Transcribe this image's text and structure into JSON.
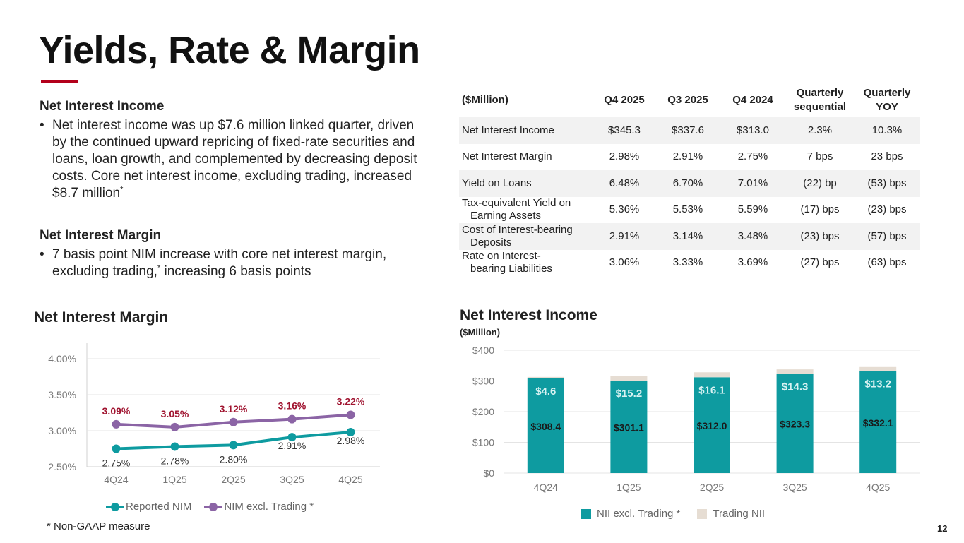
{
  "title": "Yields, Rate & Margin",
  "left": {
    "nii_heading": "Net Interest Income",
    "nii_bullet": "Net interest income was up $7.6 million linked quarter, driven by the continued upward repricing of fixed-rate securities and loans, loan growth, and complemented by decreasing deposit costs. Core net interest income, excluding trading, increased $8.7 million",
    "nii_star": "*",
    "nim_heading": "Net Interest Margin",
    "nim_bullet_a": "7 basis point NIM increase with core net interest margin, excluding trading,",
    "nim_star": "*",
    "nim_bullet_b": " increasing 6 basis points"
  },
  "table": {
    "headers": [
      "($Million)",
      "Q4 2025",
      "Q3 2025",
      "Q4 2024",
      "Quarterly sequential",
      "Quarterly YOY"
    ],
    "rows": [
      {
        "label_a": "Net Interest Income",
        "label_b": "",
        "cells": [
          "$345.3",
          "$337.6",
          "$313.0",
          "2.3%",
          "10.3%"
        ]
      },
      {
        "label_a": "Net Interest Margin",
        "label_b": "",
        "cells": [
          "2.98%",
          "2.91%",
          "2.75%",
          "7 bps",
          "23 bps"
        ]
      },
      {
        "label_a": "Yield on Loans",
        "label_b": "",
        "cells": [
          "6.48%",
          "6.70%",
          "7.01%",
          "(22) bp",
          "(53) bps"
        ]
      },
      {
        "label_a": "Tax-equivalent Yield on",
        "label_b": "Earning Assets",
        "cells": [
          "5.36%",
          "5.53%",
          "5.59%",
          "(17) bps",
          "(23) bps"
        ]
      },
      {
        "label_a": "Cost of Interest-bearing",
        "label_b": "Deposits",
        "cells": [
          "2.91%",
          "3.14%",
          "3.48%",
          "(23) bps",
          "(57) bps"
        ]
      },
      {
        "label_a": "Rate on Interest-",
        "label_b": "bearing Liabilities",
        "cells": [
          "3.06%",
          "3.33%",
          "3.69%",
          "(27) bps",
          "(63) bps"
        ]
      }
    ]
  },
  "nim_chart_title": "Net Interest Margin",
  "nii_chart_title": "Net Interest Income",
  "nii_chart_unit": "($Million)",
  "footnote": "*   Non-GAAP measure",
  "page_number": "12",
  "colors": {
    "teal": "#0e9ba0",
    "purple": "#8b64a5",
    "maroon": "#a01430",
    "trading": "#e6ddd3",
    "accent": "#b3001b"
  },
  "chart_data": [
    {
      "type": "line",
      "title": "Net Interest Margin",
      "categories": [
        "4Q24",
        "1Q25",
        "2Q25",
        "3Q25",
        "4Q25"
      ],
      "ylim": [
        2.5,
        4.0
      ],
      "yticks": [
        "2.50%",
        "3.00%",
        "3.50%",
        "4.00%"
      ],
      "ytick_values": [
        2.5,
        3.0,
        3.5,
        4.0
      ],
      "legend_position": "bottom",
      "series": [
        {
          "name": "Reported NIM",
          "values": [
            2.75,
            2.78,
            2.8,
            2.91,
            2.98
          ],
          "labels": [
            "2.75%",
            "2.78%",
            "2.80%",
            "2.91%",
            "2.98%"
          ]
        },
        {
          "name": "NIM excl. Trading *",
          "values": [
            3.09,
            3.05,
            3.12,
            3.16,
            3.22
          ],
          "labels": [
            "3.09%",
            "3.05%",
            "3.12%",
            "3.16%",
            "3.22%"
          ]
        }
      ]
    },
    {
      "type": "bar",
      "title": "Net Interest Income",
      "ylabel": "($Million)",
      "categories": [
        "4Q24",
        "1Q25",
        "2Q25",
        "3Q25",
        "4Q25"
      ],
      "ylim": [
        0,
        400
      ],
      "yticks": [
        "$0",
        "$100",
        "$200",
        "$300",
        "$400"
      ],
      "ytick_values": [
        0,
        100,
        200,
        300,
        400
      ],
      "legend_position": "bottom",
      "stacked": true,
      "series": [
        {
          "name": "NII excl. Trading *",
          "values": [
            308.4,
            301.1,
            312.0,
            323.3,
            332.1
          ],
          "labels": [
            "$308.4",
            "$301.1",
            "$312.0",
            "$323.3",
            "$332.1"
          ]
        },
        {
          "name": "Trading NII",
          "values": [
            4.6,
            15.2,
            16.1,
            14.3,
            13.2
          ],
          "labels": [
            "$4.6",
            "$15.2",
            "$16.1",
            "$14.3",
            "$13.2"
          ]
        }
      ]
    }
  ]
}
